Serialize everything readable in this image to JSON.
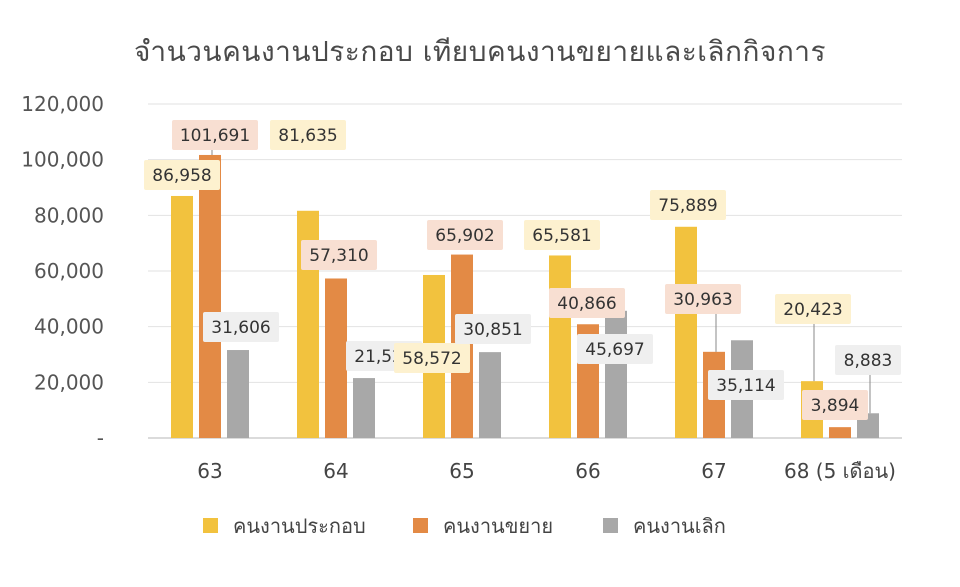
{
  "chart_data": {
    "type": "bar",
    "title": "จำนวนคนงานประกอบ เทียบคนงานขยายและเลิกกิจการ",
    "xlabel": "",
    "ylabel": "",
    "ylim": [
      0,
      120000
    ],
    "y_ticks": [
      {
        "value": 0,
        "label": "-"
      },
      {
        "value": 20000,
        "label": "20,000"
      },
      {
        "value": 40000,
        "label": "40,000"
      },
      {
        "value": 60000,
        "label": "60,000"
      },
      {
        "value": 80000,
        "label": "80,000"
      },
      {
        "value": 100000,
        "label": "100,000"
      },
      {
        "value": 120000,
        "label": "120,000"
      }
    ],
    "grid": true,
    "legend_position": "bottom",
    "categories": [
      "63",
      "64",
      "65",
      "66",
      "67",
      "68 (5 เดือน)"
    ],
    "series": [
      {
        "name": "คนงานประกอบ",
        "color": "#F2C23E",
        "values": [
          86958,
          81635,
          58572,
          65581,
          75889,
          20423
        ],
        "labels": [
          "86,958",
          "81,635",
          "58,572",
          "65,581",
          "75,889",
          "20,423"
        ]
      },
      {
        "name": "คนงานขยาย",
        "color": "#E38A45",
        "values": [
          101691,
          57310,
          65902,
          40866,
          30963,
          3894
        ],
        "labels": [
          "101,691",
          "57,310",
          "65,902",
          "40,866",
          "30,963",
          "3,894"
        ]
      },
      {
        "name": "คนงานเลิก",
        "color": "#A8A8A8",
        "values": [
          31606,
          21529,
          30851,
          45697,
          35114,
          8883
        ],
        "labels": [
          "31,606",
          "21,529",
          "30,851",
          "45,697",
          "35,114",
          "8,883"
        ]
      }
    ]
  }
}
